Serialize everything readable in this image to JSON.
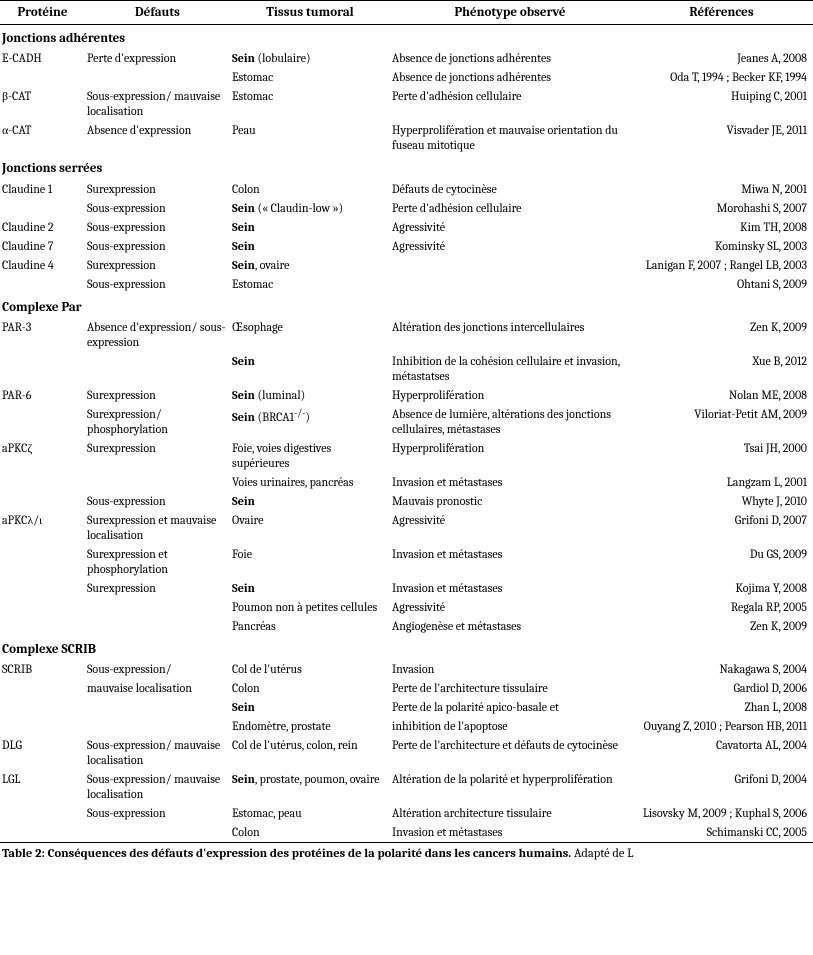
{
  "headers": {
    "prot": "Protéine",
    "def": "Défauts",
    "tiss": "Tissus tumoral",
    "phen": "Phénotype observé",
    "ref": "Références"
  },
  "sections": [
    {
      "title": "Jonctions adhérentes",
      "rows": [
        {
          "prot": "E-CADH",
          "def": "Perte d'expression",
          "tiss": "<b>Sein</b> (lobulaire)",
          "phen": "Absence de jonctions adhérentes",
          "ref": "Jeanes A, 2008"
        },
        {
          "prot": "",
          "def": "",
          "tiss": "Estomac",
          "phen": "Absence de jonctions adhérentes",
          "ref": "Oda T, 1994 ; Becker KF, 1994"
        },
        {
          "prot": "β-CAT",
          "def": "Sous-expression/ mauvaise localisation",
          "tiss": "Estomac",
          "phen": "Perte d'adhésion cellulaire",
          "ref": "Huiping C, 2001"
        },
        {
          "prot": "α-CAT",
          "def": "Absence d'expression",
          "tiss": "Peau",
          "phen": "Hyperprolifération et mauvaise orientation du fuseau mitotique",
          "ref": "Visvader JE, 2011"
        }
      ]
    },
    {
      "title": "Jonctions serrées",
      "rows": [
        {
          "prot": "Claudine 1",
          "def": "Surexpression",
          "tiss": "Colon",
          "phen": "Défauts de cytocinèse",
          "ref": "Miwa N, 2001"
        },
        {
          "prot": "",
          "def": "Sous-expression",
          "tiss": "<b>Sein</b> (« Claudin-low »)",
          "phen": "Perte d'adhésion cellulaire",
          "ref": "Morohashi S, 2007"
        },
        {
          "prot": "Claudine 2",
          "def": "Sous-expression",
          "tiss": "<b>Sein</b>",
          "phen": "Agressivité",
          "ref": "Kim TH, 2008"
        },
        {
          "prot": "Claudine 7",
          "def": "Sous-expression",
          "tiss": "<b>Sein</b>",
          "phen": "Agressivité",
          "ref": "Kominsky SL, 2003"
        },
        {
          "prot": "Claudine 4",
          "def": "Surexpression",
          "tiss": "<b>Sein</b>, ovaire",
          "phen": "",
          "ref": "Lanigan F, 2007 ; Rangel LB, 2003"
        },
        {
          "prot": "",
          "def": "Sous-expression",
          "tiss": "Estomac",
          "phen": "",
          "ref": "Ohtani S, 2009"
        }
      ]
    },
    {
      "title": "Complexe Par",
      "rows": [
        {
          "prot": "PAR-3",
          "def": "Absence d'expression/ sous-expression",
          "tiss": "Œsophage",
          "phen": "Altération des jonctions intercellulaires",
          "ref": "Zen K, 2009"
        },
        {
          "prot": "",
          "def": "",
          "tiss": "<b>Sein</b>",
          "phen": "Inhibition de la cohésion cellulaire et invasion, métastatses",
          "ref": "Xue B, 2012"
        },
        {
          "prot": "PAR-6",
          "def": "Surexpression",
          "tiss": "<b>Sein</b> (luminal)",
          "phen": "Hyperprolifération",
          "ref": "Nolan ME, 2008"
        },
        {
          "prot": "",
          "def": "Surexpression/ phosphorylation",
          "tiss": "<b>Sein</b> (BRCA1<sup>-/-</sup>)",
          "phen": "Absence de lumière, altérations des jonctions cellulaires, métastases",
          "ref": "Viloriat-Petit AM, 2009"
        },
        {
          "prot": "aPKCζ",
          "def": "Surexpression",
          "tiss": "Foie, voies digestives supérieures",
          "phen": "Hyperprolifération",
          "ref": "Tsai JH, 2000"
        },
        {
          "prot": "",
          "def": "",
          "tiss": "Voies urinaires, pancréas",
          "phen": "Invasion et métastases",
          "ref": "Langzam L, 2001"
        },
        {
          "prot": "",
          "def": "Sous-expression",
          "tiss": "<b>Sein</b>",
          "phen": "Mauvais pronostic",
          "ref": "Whyte J, 2010"
        },
        {
          "prot": "aPKCλ/ι",
          "def": "Surexpression et mauvaise localisation",
          "tiss": "Ovaire",
          "phen": "Agressivité",
          "ref": "Grifoni D, 2007"
        },
        {
          "prot": "",
          "def": "Surexpression et phosphorylation",
          "tiss": "Foie",
          "phen": "Invasion et métastases",
          "ref": "Du GS, 2009"
        },
        {
          "prot": "",
          "def": "Surexpression",
          "tiss": "<b>Sein</b>",
          "phen": "Invasion et métastases",
          "ref": "Kojima Y, 2008"
        },
        {
          "prot": "",
          "def": "",
          "tiss": "Poumon non à petites cellules",
          "phen": "Agressivité",
          "ref": "Regala RP, 2005"
        },
        {
          "prot": "",
          "def": "",
          "tiss": "Pancréas",
          "phen": "Angiogenèse et métastases",
          "ref": "Zen K, 2009"
        }
      ]
    },
    {
      "title": "Complexe SCRIB",
      "rows": [
        {
          "prot": "SCRIB",
          "def": "Sous-expression/",
          "tiss": "Col de l'utérus",
          "phen": "Invasion",
          "ref": "Nakagawa S, 2004"
        },
        {
          "prot": "",
          "def": "mauvaise localisation",
          "tiss": "Colon",
          "phen": "Perte de l'architecture tissulaire",
          "ref": "Gardiol D, 2006"
        },
        {
          "prot": "",
          "def": "",
          "tiss": "<b>Sein</b>",
          "phen": "Perte de la polarité apico-basale et",
          "ref": "Zhan L, 2008"
        },
        {
          "prot": "",
          "def": "",
          "tiss": "Endomètre, prostate",
          "phen": "inhibition de l'apoptose",
          "ref": "Ouyang Z, 2010 ; Pearson HB, 2011"
        },
        {
          "prot": "DLG",
          "def": "Sous-expression/ mauvaise localisation",
          "tiss": "Col de l'utérus, colon, rein",
          "phen": "Perte de l'architecture et défauts de cytocinèse",
          "ref": "Cavatorta AL, 2004"
        },
        {
          "prot": "LGL",
          "def": "Sous-expression/ mauvaise localisation",
          "tiss": "<b>Sein</b>, prostate, poumon, ovaire",
          "phen": "Altération de la polarité et hyperprolifération",
          "ref": "Grifoni D,  2004"
        },
        {
          "prot": "",
          "def": "Sous-expression",
          "tiss": "Estomac, peau",
          "phen": "Altération architecture tissulaire",
          "ref": "Lisovsky M, 2009 ; Kuphal S, 2006"
        },
        {
          "prot": "",
          "def": "",
          "tiss": "Colon",
          "phen": "Invasion et métastases",
          "ref": "Schimanski CC, 2005"
        }
      ]
    }
  ],
  "caption_bold": "Table 2: Conséquences des défauts d'expression des protéines de la polarité dans les cancers humains.",
  "caption_tail": " Adapté de L"
}
